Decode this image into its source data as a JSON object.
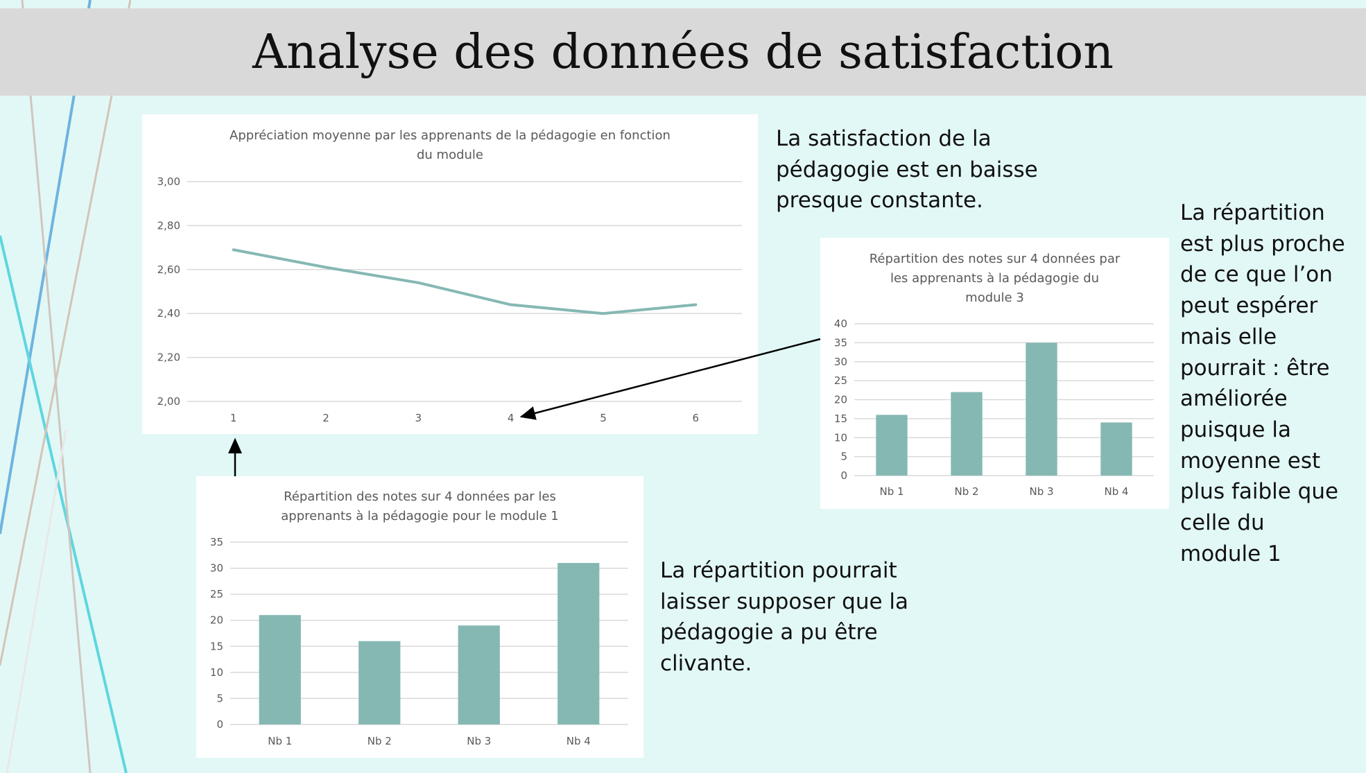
{
  "slide": {
    "title": "Analyse des données de satisfaction"
  },
  "notes": {
    "top": [
      "La satisfaction de la",
      "pédagogie est en baisse",
      "presque constante."
    ],
    "right": [
      "La répartition",
      "est plus proche",
      "de ce que l’on",
      "peut espérer",
      "mais elle",
      "pourrait : être",
      "améliorée",
      "puisque la",
      "moyenne est",
      "plus faible que",
      "celle du",
      "module 1"
    ],
    "bottom": [
      "La répartition pourrait",
      "laisser supposer que la",
      "pédagogie a pu être",
      "clivante."
    ]
  },
  "colors": {
    "series": "#85b8b3",
    "grid": "#d9d9d9",
    "background": "#e2f8f6",
    "titlebar": "#d9d9d9"
  },
  "chart_data": [
    {
      "id": "line",
      "type": "line",
      "title": [
        "Appréciation moyenne par les apprenants de la pédagogie en fonction",
        "du module"
      ],
      "categories": [
        "1",
        "2",
        "3",
        "4",
        "5",
        "6"
      ],
      "values": [
        2.69,
        2.61,
        2.54,
        2.44,
        2.4,
        2.44
      ],
      "yticks": [
        "2,00",
        "2,20",
        "2,40",
        "2,60",
        "2,80",
        "3,00"
      ],
      "ylim": [
        2.0,
        3.0
      ],
      "grid": true
    },
    {
      "id": "m3",
      "type": "bar",
      "title": [
        "Répartition des notes sur 4 données par",
        "les apprenants à la pédagogie du",
        "module 3"
      ],
      "categories": [
        "Nb 1",
        "Nb 2",
        "Nb 3",
        "Nb 4"
      ],
      "values": [
        16,
        22,
        35,
        14
      ],
      "yticks": [
        "0",
        "5",
        "10",
        "15",
        "20",
        "25",
        "30",
        "35",
        "40"
      ],
      "ylim": [
        0,
        40
      ],
      "grid": true
    },
    {
      "id": "m1",
      "type": "bar",
      "title": [
        "Répartition des notes sur 4 données par les",
        "apprenants à la pédagogie pour le module 1"
      ],
      "categories": [
        "Nb 1",
        "Nb 2",
        "Nb 3",
        "Nb 4"
      ],
      "values": [
        21,
        16,
        19,
        31
      ],
      "yticks": [
        "0",
        "5",
        "10",
        "15",
        "20",
        "25",
        "30",
        "35"
      ],
      "ylim": [
        0,
        35
      ],
      "grid": true
    }
  ]
}
